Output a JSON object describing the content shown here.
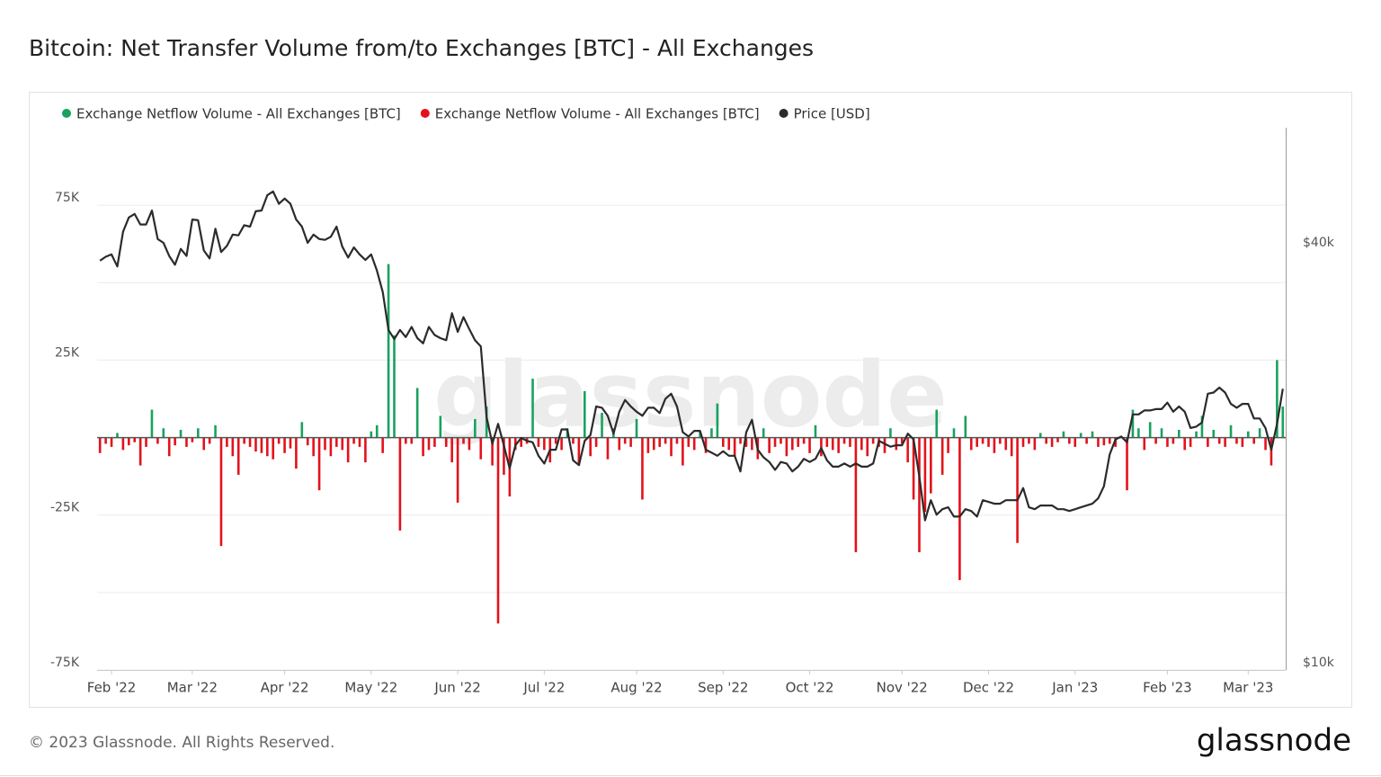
{
  "chart_data": {
    "type": "combo",
    "title": "Bitcoin: Net Transfer Volume from/to Exchanges [BTC] - All Exchanges",
    "watermark": "glassnode",
    "footer": "© 2023 Glassnode. All Rights Reserved.",
    "logo": "glassnode",
    "categories": [
      null,
      null,
      "Feb '22",
      null,
      null,
      null,
      null,
      null,
      null,
      null,
      null,
      null,
      null,
      null,
      null,
      null,
      "Mar '22",
      null,
      null,
      null,
      null,
      null,
      null,
      null,
      null,
      null,
      null,
      null,
      null,
      null,
      null,
      null,
      "Apr '22",
      null,
      null,
      null,
      null,
      null,
      null,
      null,
      null,
      null,
      null,
      null,
      null,
      null,
      null,
      "May '22",
      null,
      null,
      null,
      null,
      null,
      null,
      null,
      null,
      null,
      null,
      null,
      null,
      null,
      null,
      "Jun '22",
      null,
      null,
      null,
      null,
      null,
      null,
      null,
      null,
      null,
      null,
      null,
      null,
      null,
      null,
      "Jul '22",
      null,
      null,
      null,
      null,
      null,
      null,
      null,
      null,
      null,
      null,
      null,
      null,
      null,
      null,
      null,
      "Aug '22",
      null,
      null,
      null,
      null,
      null,
      null,
      null,
      null,
      null,
      null,
      null,
      null,
      null,
      null,
      "Sep '22",
      null,
      null,
      null,
      null,
      null,
      null,
      null,
      null,
      null,
      null,
      null,
      null,
      null,
      null,
      "Oct '22",
      null,
      null,
      null,
      null,
      null,
      null,
      null,
      null,
      null,
      null,
      null,
      null,
      null,
      null,
      null,
      "Nov '22",
      null,
      null,
      null,
      null,
      null,
      null,
      null,
      null,
      null,
      null,
      null,
      null,
      null,
      null,
      "Dec '22",
      null,
      null,
      null,
      null,
      null,
      null,
      null,
      null,
      null,
      null,
      null,
      null,
      null,
      null,
      "Jan '23",
      null,
      null,
      null,
      null,
      null,
      null,
      null,
      null,
      null,
      null,
      null,
      null,
      null,
      null,
      null,
      "Feb '23",
      null,
      null,
      null,
      null,
      null,
      null,
      null,
      null,
      null,
      null,
      null,
      null,
      null,
      "Mar '23",
      null,
      null,
      null,
      null,
      null,
      null
    ],
    "series": [
      {
        "name": "Exchange Netflow Volume - All Exchanges [BTC]",
        "type": "bar",
        "color": "#19a15f",
        "values": [
          null,
          null,
          null,
          1500,
          null,
          null,
          null,
          null,
          null,
          9000,
          null,
          3000,
          null,
          null,
          2500,
          null,
          null,
          3000,
          null,
          null,
          4000,
          null,
          null,
          null,
          null,
          null,
          null,
          null,
          null,
          null,
          null,
          null,
          null,
          null,
          null,
          5000,
          null,
          null,
          null,
          null,
          null,
          null,
          null,
          null,
          null,
          null,
          null,
          2000,
          4000,
          null,
          56000,
          33000,
          null,
          null,
          null,
          16000,
          null,
          null,
          null,
          7000,
          null,
          null,
          null,
          null,
          null,
          6000,
          null,
          10000,
          null,
          null,
          null,
          null,
          null,
          null,
          null,
          19000,
          null,
          null,
          null,
          null,
          null,
          3000,
          null,
          null,
          15000,
          null,
          null,
          8000,
          null,
          3000,
          null,
          null,
          null,
          6000,
          null,
          null,
          null,
          null,
          null,
          null,
          null,
          null,
          null,
          null,
          2000,
          null,
          3000,
          11000,
          null,
          null,
          null,
          null,
          null,
          null,
          null,
          3000,
          null,
          null,
          null,
          null,
          null,
          null,
          null,
          null,
          4000,
          null,
          null,
          null,
          null,
          null,
          null,
          null,
          null,
          null,
          null,
          null,
          null,
          3000,
          null,
          null,
          null,
          null,
          null,
          null,
          null,
          9000,
          null,
          null,
          3000,
          null,
          7000,
          null,
          null,
          null,
          null,
          null,
          null,
          null,
          null,
          null,
          null,
          null,
          null,
          1500,
          null,
          null,
          null,
          2000,
          null,
          null,
          1500,
          null,
          2000,
          null,
          null,
          null,
          null,
          null,
          null,
          9000,
          3000,
          null,
          5000,
          null,
          3000,
          null,
          null,
          2500,
          null,
          null,
          2000,
          7000,
          null,
          2500,
          null,
          null,
          4000,
          null,
          null,
          2000,
          null,
          3000,
          null,
          null,
          25000,
          10000
        ]
      },
      {
        "name": "Exchange Netflow Volume - All Exchanges [BTC]",
        "type": "bar",
        "color": "#e3121b",
        "values": [
          -5000,
          -2000,
          -3000,
          null,
          -4000,
          -2500,
          -1500,
          -9000,
          -3000,
          null,
          -2000,
          null,
          -6000,
          -2500,
          null,
          -3000,
          -1500,
          null,
          -4000,
          -2000,
          null,
          -35000,
          -3000,
          -6000,
          -12000,
          -2000,
          -3000,
          -4500,
          -5000,
          -6000,
          -7000,
          -2000,
          -5000,
          -3500,
          -10000,
          null,
          -2500,
          -6000,
          -17000,
          -4000,
          -6000,
          -3000,
          -4000,
          -8000,
          -2000,
          -3000,
          -8000,
          null,
          null,
          -5000,
          null,
          null,
          -30000,
          -2000,
          -2000,
          null,
          -6000,
          -4000,
          -3000,
          null,
          -3000,
          -8000,
          -21000,
          -2000,
          -4000,
          null,
          -7000,
          null,
          -9000,
          -60000,
          -12000,
          -19000,
          -4000,
          -3000,
          -2000,
          null,
          -3000,
          -4000,
          -8000,
          -2000,
          -4000,
          null,
          -2000,
          -9000,
          null,
          -6000,
          -3000,
          null,
          -7000,
          null,
          -4000,
          -2000,
          -3000,
          null,
          -20000,
          -5000,
          -4000,
          -3000,
          -2000,
          -6000,
          -2000,
          -9000,
          -3000,
          -4000,
          null,
          -5000,
          null,
          null,
          -3000,
          -4000,
          -6000,
          -2000,
          -3000,
          -4000,
          -7000,
          null,
          -5000,
          -3000,
          -2000,
          -6000,
          -4000,
          -3000,
          -2000,
          -5000,
          null,
          -6000,
          -3000,
          -4000,
          -5000,
          -2000,
          -3000,
          -37000,
          -4000,
          -6000,
          -2000,
          -3000,
          -5000,
          null,
          -4000,
          -2000,
          -8000,
          -20000,
          -37000,
          -24000,
          -18000,
          null,
          -12000,
          -5000,
          null,
          -46000,
          null,
          -4000,
          -3000,
          -2000,
          -3000,
          -5000,
          -2000,
          -4000,
          -6000,
          -34000,
          -3000,
          -2000,
          -4000,
          null,
          -2000,
          -3000,
          -1500,
          null,
          -2000,
          -3000,
          null,
          -2000,
          null,
          -3000,
          -2500,
          -2000,
          -3000,
          null,
          -17000,
          null,
          null,
          -4000,
          null,
          -2000,
          null,
          -3000,
          -2000,
          null,
          -4000,
          -3000,
          null,
          null,
          -3000,
          null,
          -2000,
          -3000,
          null,
          -2000,
          -3000,
          null,
          -2000,
          null,
          -4000,
          -9000,
          null,
          null
        ]
      },
      {
        "name": "Price [USD]",
        "type": "line",
        "axis": "y2",
        "color": "#2b2b2b",
        "values": [
          37700,
          38200,
          38500,
          37000,
          41500,
          43500,
          44000,
          42500,
          42500,
          44500,
          40500,
          40000,
          38300,
          37200,
          39200,
          38300,
          43200,
          43100,
          39000,
          38000,
          41900,
          38800,
          39600,
          41100,
          41000,
          42400,
          42200,
          44400,
          44500,
          46800,
          47400,
          45500,
          46300,
          45500,
          43200,
          42200,
          40000,
          41100,
          40500,
          40400,
          40800,
          42200,
          39500,
          38100,
          39400,
          38500,
          37800,
          38500,
          36500,
          34000,
          30000,
          29100,
          30000,
          29300,
          30300,
          29200,
          28700,
          30300,
          29500,
          29200,
          29000,
          31700,
          29800,
          31300,
          30100,
          29000,
          28400,
          22500,
          20600,
          22000,
          20500,
          19000,
          20500,
          21000,
          20800,
          20700,
          19800,
          19300,
          20200,
          20200,
          21600,
          21600,
          19500,
          19200,
          20800,
          21200,
          23300,
          23200,
          22600,
          21300,
          22900,
          23800,
          23300,
          22900,
          22600,
          23200,
          23200,
          22800,
          23900,
          24300,
          23300,
          21400,
          21100,
          21500,
          21500,
          20200,
          20000,
          19800,
          20100,
          19800,
          19800,
          18800,
          21400,
          22300,
          20200,
          19700,
          19400,
          18900,
          19400,
          19300,
          18800,
          19100,
          19600,
          19400,
          19600,
          20300,
          19500,
          19100,
          19100,
          19300,
          19100,
          19300,
          19100,
          19100,
          19300,
          20800,
          20600,
          20400,
          20500,
          20500,
          21300,
          20900,
          18500,
          16000,
          17100,
          16300,
          16600,
          16700,
          16200,
          16200,
          16600,
          16500,
          16200,
          17100,
          17000,
          16900,
          16900,
          17100,
          17100,
          17100,
          17800,
          16700,
          16600,
          16800,
          16800,
          16800,
          16600,
          16600,
          16500,
          16600,
          16700,
          16800,
          16900,
          17200,
          17900,
          19900,
          20900,
          21100,
          20700,
          22700,
          22700,
          23000,
          23000,
          23100,
          23100,
          23600,
          22900,
          23300,
          22900,
          21700,
          21800,
          22100,
          24300,
          24400,
          24800,
          24400,
          23500,
          23200,
          23500,
          23500,
          22400,
          22400,
          21700,
          20200,
          22000,
          24700
        ]
      }
    ],
    "ylim": [
      -75000,
      100000
    ],
    "yticks": [
      {
        "value": -75000,
        "label": "-75K"
      },
      {
        "value": -25000,
        "label": "-25K"
      },
      {
        "value": 25000,
        "label": "25K"
      },
      {
        "value": 75000,
        "label": "75K"
      }
    ],
    "y2lim": [
      9760,
      58500
    ],
    "y2scale": "log",
    "y2ticks": [
      {
        "value": 10000,
        "label": "$10k"
      },
      {
        "value": 40000,
        "label": "$40k"
      }
    ],
    "grid": true,
    "legend": "top-left"
  }
}
